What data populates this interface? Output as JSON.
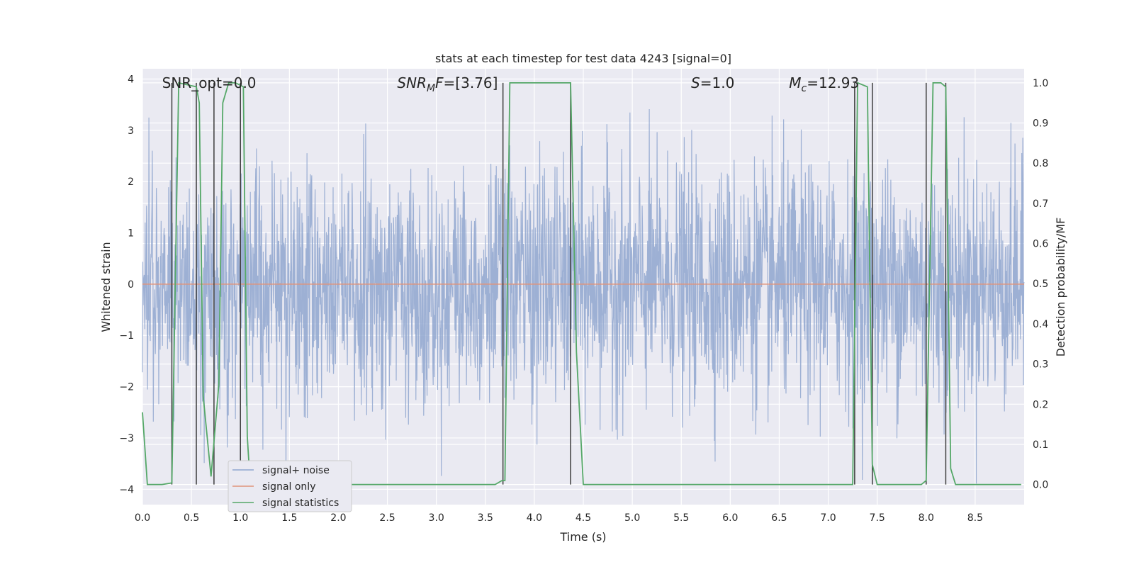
{
  "chart_data": {
    "type": "line",
    "title": "stats at each timestep for test data 4243 [signal=0]",
    "xlabel": "Time (s)",
    "ylabel": "Whitened strain",
    "y2label": "Detection probability/MF",
    "xlim": [
      0.0,
      9.0
    ],
    "ylim": [
      -4.3,
      4.2
    ],
    "y2lim": [
      -0.05,
      1.035
    ],
    "xticks": [
      0.0,
      0.5,
      1.0,
      1.5,
      2.0,
      2.5,
      3.0,
      3.5,
      4.0,
      4.5,
      5.0,
      5.5,
      6.0,
      6.5,
      7.0,
      7.5,
      8.0,
      8.5
    ],
    "xtick_labels": [
      "0.0",
      "0.5",
      "1.0",
      "1.5",
      "2.0",
      "2.5",
      "3.0",
      "3.5",
      "4.0",
      "4.5",
      "5.0",
      "5.5",
      "6.0",
      "6.5",
      "7.0",
      "7.5",
      "8.0",
      "8.5"
    ],
    "yticks": [
      4,
      3,
      2,
      1,
      0,
      -1,
      -2,
      -3,
      -4
    ],
    "ytick_labels": [
      "4",
      "3",
      "2",
      "1",
      "0",
      "−1",
      "−2",
      "−3",
      "−4"
    ],
    "y2ticks": [
      1.0,
      0.9,
      0.8,
      0.7,
      0.6,
      0.5,
      0.4,
      0.3,
      0.2,
      0.1,
      0.0
    ],
    "y2tick_labels": [
      "1.0",
      "0.9",
      "0.8",
      "0.7",
      "0.6",
      "0.5",
      "0.4",
      "0.3",
      "0.2",
      "0.1",
      "0.0"
    ],
    "grid": true,
    "annotations": [
      {
        "text": "SNR_opt=0.0",
        "x": 0.2
      },
      {
        "text": "SNR_MF=[3.76]",
        "x": 2.6,
        "math": true,
        "base": "SNR",
        "sub": "M",
        "rest": "F=[3.76]"
      },
      {
        "text": "S=1.0",
        "x": 5.6,
        "math": true,
        "base": "S",
        "sub": "",
        "rest": "=1.0"
      },
      {
        "text": "M_c=12.93",
        "x": 6.6,
        "math": true,
        "base": "M",
        "sub": "c",
        "rest": "=12.93"
      }
    ],
    "legend": {
      "placement": "lower-left",
      "entries": [
        "signal+ noise",
        "signal only",
        "signal statistics"
      ]
    },
    "series": [
      {
        "name": "signal+ noise",
        "axis": "left",
        "color": "#8fa6cf",
        "description": "whitened strain noise, roughly gaussian",
        "envelope_min": -4.0,
        "envelope_max": 3.87
      },
      {
        "name": "signal only",
        "axis": "left",
        "color": "#e0937a",
        "x": [
          0.0,
          9.0
        ],
        "values": [
          0.0,
          0.0
        ]
      },
      {
        "name": "signal statistics",
        "axis": "right",
        "color": "#55a868",
        "x": [
          0.0,
          0.05,
          0.1,
          0.2,
          0.3,
          0.37,
          0.55,
          0.58,
          0.62,
          0.7,
          0.78,
          0.82,
          0.88,
          0.95,
          1.03,
          1.07,
          1.1,
          1.12,
          3.6,
          3.67,
          3.7,
          3.75,
          4.37,
          4.43,
          4.5,
          7.25,
          7.3,
          7.4,
          7.45,
          7.5,
          7.58,
          7.65,
          7.7,
          7.95,
          8.0,
          8.07,
          8.15,
          8.2,
          8.25,
          8.3,
          8.35,
          8.45,
          8.5,
          8.7,
          8.97
        ],
        "values": [
          0.18,
          0.0,
          0.0,
          0.0,
          0.004,
          1.0,
          0.99,
          0.95,
          0.22,
          0.02,
          0.25,
          0.95,
          1.0,
          1.0,
          0.99,
          0.12,
          0.0,
          0.0,
          0.0,
          0.01,
          0.01,
          1.0,
          1.0,
          0.33,
          0.0,
          0.0,
          1.0,
          0.99,
          0.05,
          0.0,
          0.0,
          0.0,
          0.0,
          0.0,
          0.01,
          1.0,
          1.0,
          0.99,
          0.04,
          0.0,
          0.0,
          0.0,
          0.0,
          0.0,
          0.0
        ]
      }
    ],
    "vertical_markers": {
      "color": "#3d3d3d",
      "x": [
        0.3,
        0.55,
        0.73,
        1.0,
        3.68,
        4.37,
        7.27,
        7.45,
        8.0,
        8.2
      ],
      "y_from": 0.0,
      "y_to": 1.0
    }
  }
}
